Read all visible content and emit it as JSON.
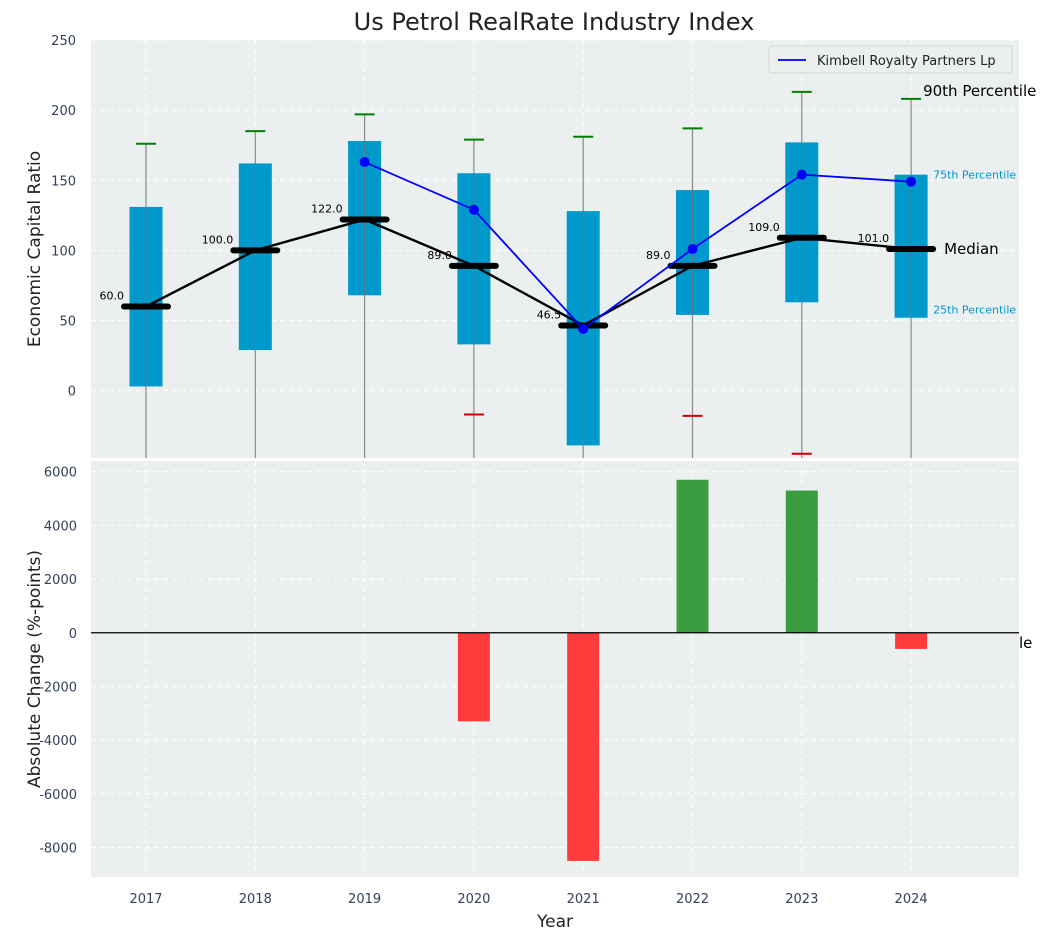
{
  "chart_data": [
    {
      "type": "box",
      "title": "Us Petrol RealRate Industry Index",
      "ylabel": "Economic Capital Ratio",
      "xlabel": "",
      "ylim": [
        -48,
        250
      ],
      "yticks": [
        0,
        50,
        100,
        150,
        200,
        250
      ],
      "grid": true,
      "legend_position": "top-right",
      "categories": [
        "2017",
        "2018",
        "2019",
        "2020",
        "2021",
        "2022",
        "2023",
        "2024"
      ],
      "boxes": [
        {
          "q1": 3,
          "median": 60.0,
          "q3": 131,
          "p10": null,
          "p90": 176
        },
        {
          "q1": 29,
          "median": 100.0,
          "q3": 162,
          "p10": null,
          "p90": 185
        },
        {
          "q1": 68,
          "median": 122.0,
          "q3": 178,
          "p10": null,
          "p90": 197
        },
        {
          "q1": 33,
          "median": 89.0,
          "q3": 155,
          "p10": -17,
          "p90": 179
        },
        {
          "q1": -39,
          "median": 46.5,
          "q3": 128,
          "p10": null,
          "p90": 181
        },
        {
          "q1": 54,
          "median": 89.0,
          "q3": 143,
          "p10": -18,
          "p90": 187
        },
        {
          "q1": 63,
          "median": 109.0,
          "q3": 177,
          "p10": -45,
          "p90": 213
        },
        {
          "q1": 52,
          "median": 101.0,
          "q3": 154,
          "p10": null,
          "p90": 208
        }
      ],
      "median_labels": [
        "60.0",
        "100.0",
        "122.0",
        "89.0",
        "46.5",
        "89.0",
        "109.0",
        "101.0"
      ],
      "series": [
        {
          "name": "Kimbell Royalty Partners Lp",
          "x": [
            "2019",
            "2020",
            "2021",
            "2022",
            "2023",
            "2024"
          ],
          "values": [
            163,
            129,
            44,
            101,
            154,
            149
          ],
          "color": "#0000ff"
        }
      ],
      "annotations": {
        "p90": "90th Percentile",
        "p75": "75th Percentile",
        "median": "Median",
        "p25": "25th Percentile"
      },
      "colors": {
        "box": "#0099cc",
        "median": "#000000",
        "whisker_top": "#008000",
        "whisker_bottom": "#cc0000",
        "background": "#ebeff0"
      }
    },
    {
      "type": "bar",
      "ylabel": "Absolute Change (%-points)",
      "xlabel": "Year",
      "ylim": [
        -9100,
        6400
      ],
      "yticks": [
        -8000,
        -6000,
        -4000,
        -2000,
        0,
        2000,
        4000,
        6000
      ],
      "grid": true,
      "categories": [
        "2017",
        "2018",
        "2019",
        "2020",
        "2021",
        "2022",
        "2023",
        "2024"
      ],
      "values": [
        null,
        null,
        null,
        -3300,
        -8500,
        5700,
        5300,
        -600
      ],
      "colors": {
        "positive": "#3a9b3f",
        "negative": "#ff3b3b"
      },
      "stray_text": "le"
    }
  ]
}
